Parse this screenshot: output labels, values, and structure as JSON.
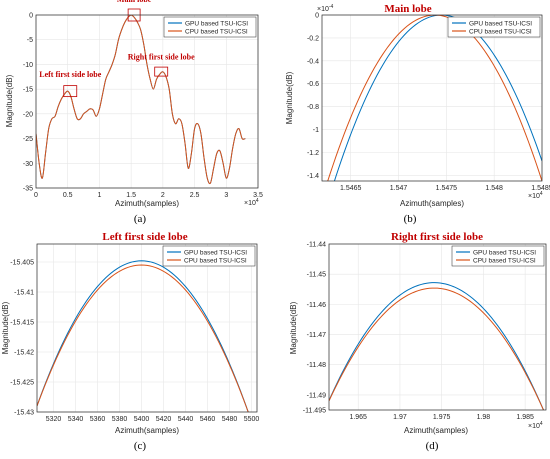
{
  "colors": {
    "gpu": "#0072BD",
    "cpu": "#D95319",
    "annotation": "#c00000",
    "grid": "#e6e6e6",
    "axis": "#262626",
    "text": "#262626"
  },
  "chart_data": [
    {
      "id": "a",
      "type": "line",
      "panel_label": "(a)",
      "title": "",
      "xlabel": "Azimuth(samples)",
      "ylabel": "Magnitude(dB)",
      "x_exponent": "×10",
      "x_exponent_power": "4",
      "xlim": [
        0,
        3.5
      ],
      "ylim": [
        -35,
        0
      ],
      "xticks": [
        0,
        0.5,
        1,
        1.5,
        2,
        2.5,
        3,
        3.5
      ],
      "xtick_labels": [
        "0",
        "0.5",
        "1",
        "1.5",
        "2",
        "2.5",
        "3",
        "3.5"
      ],
      "yticks": [
        0,
        -5,
        -10,
        -15,
        -20,
        -25,
        -30,
        -35
      ],
      "ytick_labels": [
        "0",
        "-5",
        "-10",
        "-15",
        "-20",
        "-25",
        "-30",
        "-35"
      ],
      "grid": true,
      "legend": "top-right",
      "series": [
        {
          "name": "GPU based TSU-ICSI",
          "color": "#0072BD",
          "x": [
            0.0,
            0.05,
            0.1,
            0.15,
            0.2,
            0.25,
            0.3,
            0.35,
            0.4,
            0.45,
            0.5,
            0.55,
            0.6,
            0.65,
            0.7,
            0.75,
            0.8,
            0.85,
            0.9,
            0.95,
            1.0,
            1.05,
            1.1,
            1.15,
            1.2,
            1.25,
            1.3,
            1.35,
            1.4,
            1.45,
            1.5,
            1.55,
            1.6,
            1.65,
            1.7,
            1.75,
            1.8,
            1.85,
            1.9,
            1.95,
            2.0,
            2.05,
            2.1,
            2.15,
            2.2,
            2.25,
            2.3,
            2.35,
            2.4,
            2.45,
            2.5,
            2.55,
            2.6,
            2.65,
            2.7,
            2.75,
            2.8,
            2.85,
            2.9,
            2.95,
            3.0,
            3.05,
            3.1,
            3.15,
            3.2,
            3.25,
            3.3
          ],
          "y": [
            -24,
            -30,
            -33,
            -28,
            -23,
            -21,
            -20.5,
            -18.5,
            -17,
            -16,
            -15.4,
            -16.5,
            -19,
            -21,
            -21,
            -20,
            -19.5,
            -19,
            -19.2,
            -20.5,
            -19,
            -16,
            -13,
            -11.5,
            -10,
            -8,
            -5,
            -3,
            -1.5,
            -0.5,
            0,
            -0.5,
            -1.5,
            -3,
            -6,
            -10,
            -13,
            -15,
            -13,
            -12,
            -11.5,
            -12.5,
            -15,
            -20,
            -22,
            -21,
            -22,
            -26,
            -31,
            -28,
            -23,
            -22,
            -24,
            -29,
            -33,
            -34,
            -31,
            -28,
            -27.5,
            -30,
            -33,
            -31,
            -27,
            -24,
            -23,
            -25,
            -25
          ]
        },
        {
          "name": "CPU based TSU-ICSI",
          "color": "#D95319",
          "x": [
            0.0,
            0.05,
            0.1,
            0.15,
            0.2,
            0.25,
            0.3,
            0.35,
            0.4,
            0.45,
            0.5,
            0.55,
            0.6,
            0.65,
            0.7,
            0.75,
            0.8,
            0.85,
            0.9,
            0.95,
            1.0,
            1.05,
            1.1,
            1.15,
            1.2,
            1.25,
            1.3,
            1.35,
            1.4,
            1.45,
            1.5,
            1.55,
            1.6,
            1.65,
            1.7,
            1.75,
            1.8,
            1.85,
            1.9,
            1.95,
            2.0,
            2.05,
            2.1,
            2.15,
            2.2,
            2.25,
            2.3,
            2.35,
            2.4,
            2.45,
            2.5,
            2.55,
            2.6,
            2.65,
            2.7,
            2.75,
            2.8,
            2.85,
            2.9,
            2.95,
            3.0,
            3.05,
            3.1,
            3.15,
            3.2,
            3.25,
            3.3
          ],
          "y": [
            -24,
            -30,
            -33,
            -28,
            -23,
            -21,
            -20.5,
            -18.5,
            -17,
            -16,
            -15.4,
            -16.5,
            -19,
            -21,
            -21,
            -20,
            -19.5,
            -19,
            -19.2,
            -20.5,
            -19,
            -16,
            -13,
            -11.5,
            -10,
            -8,
            -5,
            -3,
            -1.5,
            -0.5,
            0,
            -0.5,
            -1.5,
            -3,
            -6,
            -10,
            -13,
            -15,
            -13,
            -12,
            -11.5,
            -12.5,
            -15,
            -20,
            -22,
            -21,
            -22,
            -26,
            -31,
            -28,
            -23,
            -22,
            -24,
            -29,
            -33,
            -34,
            -31,
            -28,
            -27.5,
            -30,
            -33,
            -31,
            -27,
            -24,
            -23,
            -25,
            -25
          ]
        }
      ],
      "annotations": [
        {
          "label": "Main lobe",
          "x": 1.547,
          "y": 0
        },
        {
          "label": "Left first side lobe",
          "x": 0.54,
          "y": -15.4
        },
        {
          "label": "Right first side lobe",
          "x": 1.974,
          "y": -11.45
        }
      ]
    },
    {
      "id": "b",
      "type": "line",
      "panel_label": "(b)",
      "title": "Main lobe",
      "xlabel": "Azimuth(samples)",
      "ylabel": "Magnitude(dB)",
      "x_exponent": "×10",
      "x_exponent_power": "4",
      "y_exponent": "×10",
      "y_exponent_power": "-4",
      "xlim": [
        1.5462,
        1.5485
      ],
      "ylim": [
        -1.45,
        0
      ],
      "xticks": [
        1.5465,
        1.547,
        1.5475,
        1.548,
        1.5485
      ],
      "xtick_labels": [
        "1.5465",
        "1.547",
        "1.5475",
        "1.548",
        "1.5485"
      ],
      "yticks": [
        0,
        -0.2,
        -0.4,
        -0.6,
        -0.8,
        -1,
        -1.2,
        -1.4
      ],
      "ytick_labels": [
        "0",
        "-0.2",
        "-0.4",
        "-0.6",
        "-0.8",
        "-1",
        "-1.2",
        "-1.4"
      ],
      "grid": true,
      "legend": "top-right",
      "series": [
        {
          "name": "GPU based TSU-ICSI",
          "color": "#0072BD",
          "peak_x": 1.54745,
          "peak_y": 0,
          "half_width": 0.00112
        },
        {
          "name": "CPU based TSU-ICSI",
          "color": "#D95319",
          "peak_x": 1.54738,
          "peak_y": 0,
          "half_width": 0.00112
        }
      ]
    },
    {
      "id": "c",
      "type": "line",
      "panel_label": "(c)",
      "title": "Left first side lobe",
      "xlabel": "Azimuth(samples)",
      "ylabel": "Magnitude(dB)",
      "xlim": [
        5305,
        5505
      ],
      "ylim": [
        -15.43,
        -15.402
      ],
      "xticks": [
        5320,
        5340,
        5360,
        5380,
        5400,
        5420,
        5440,
        5460,
        5480,
        5500
      ],
      "xtick_labels": [
        "5320",
        "5340",
        "5360",
        "5380",
        "5400",
        "5420",
        "5440",
        "5460",
        "5480",
        "5500"
      ],
      "yticks": [
        -15.405,
        -15.41,
        -15.415,
        -15.42,
        -15.425,
        -15.43
      ],
      "ytick_labels": [
        "-15.405",
        "-15.41",
        "-15.415",
        "-15.42",
        "-15.425",
        "-15.43"
      ],
      "grid": true,
      "legend": "top-right",
      "series": [
        {
          "name": "GPU based TSU-ICSI",
          "color": "#0072BD",
          "peak_x": 5400,
          "peak_y": -15.4048,
          "half_width": 97
        },
        {
          "name": "CPU based TSU-ICSI",
          "color": "#D95319",
          "peak_x": 5400,
          "peak_y": -15.4055,
          "half_width": 97
        }
      ]
    },
    {
      "id": "d",
      "type": "line",
      "panel_label": "(d)",
      "title": "Right first side lobe",
      "xlabel": "Azimuth(samples)",
      "ylabel": "Magnitude(dB)",
      "x_exponent": "×10",
      "x_exponent_power": "4",
      "xlim": [
        1.9615,
        1.9875
      ],
      "ylim": [
        -11.495,
        -11.44
      ],
      "xticks": [
        1.965,
        1.97,
        1.975,
        1.98,
        1.985
      ],
      "xtick_labels": [
        "1.965",
        "1.97",
        "1.975",
        "1.98",
        "1.985"
      ],
      "yticks": [
        -11.45,
        -11.46,
        -11.47,
        -11.48,
        -11.49
      ],
      "ytick_labels": [
        "-11.45",
        "-11.46",
        "-11.47",
        "-11.48",
        "-11.49"
      ],
      "extra_ytick_labels": [
        "-11.44",
        "-11.495"
      ],
      "grid": true,
      "legend": "top-right",
      "series": [
        {
          "name": "GPU based TSU-ICSI",
          "color": "#0072BD",
          "peak_x": 1.9741,
          "peak_y": -11.4528,
          "half_width": 0.0131
        },
        {
          "name": "CPU based TSU-ICSI",
          "color": "#D95319",
          "peak_x": 1.9741,
          "peak_y": -11.4546,
          "half_width": 0.0131
        }
      ]
    }
  ]
}
